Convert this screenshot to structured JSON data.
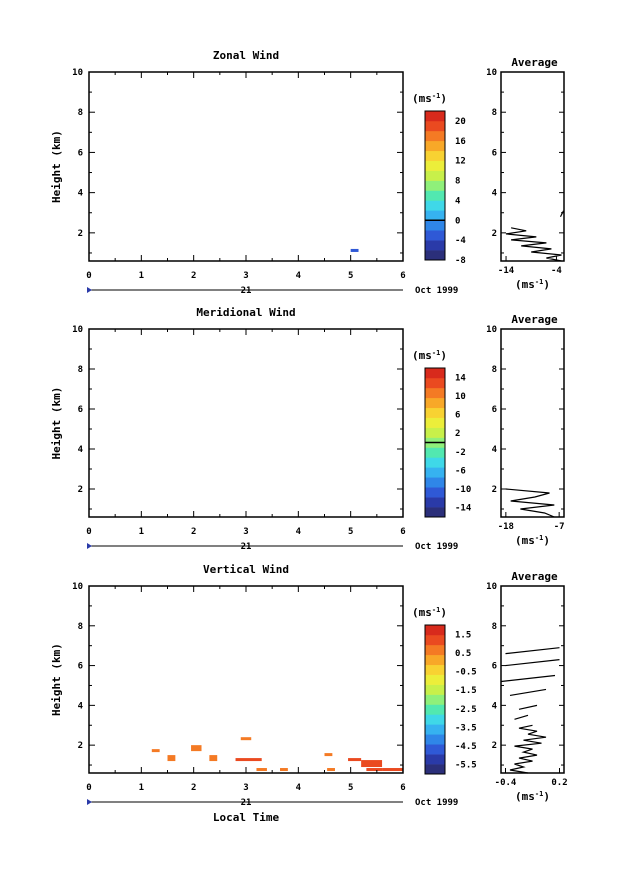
{
  "chart_data": [
    {
      "type": "heatmap",
      "title": "Zonal Wind",
      "ylabel": "Height (km)",
      "xlim": [
        0,
        6
      ],
      "ylim": [
        0.6,
        10
      ],
      "x_ticks": [
        "0",
        "1",
        "2",
        "3",
        "4",
        "5",
        "6"
      ],
      "y_ticks": [
        "2",
        "4",
        "6",
        "8",
        "10"
      ],
      "date_day": "21",
      "date_month": "Oct 1999",
      "colorbar": {
        "unit": "(ms",
        "unit_exp": "-1",
        "unit_close": ")",
        "min": -8,
        "max": 22,
        "labels": [
          "20",
          "16",
          "12",
          "8",
          "4",
          "0",
          "-4",
          "-8"
        ],
        "label_values": [
          20,
          16,
          12,
          8,
          4,
          0,
          -4,
          -8
        ],
        "zero_line": 0
      },
      "cells": [
        {
          "x0": 5.0,
          "x1": 5.15,
          "y0": 1.05,
          "y1": 1.2,
          "value": -3
        }
      ],
      "average": {
        "title": "Average",
        "xlim": [
          -15,
          -2.5
        ],
        "x_ticks": [
          "-14",
          "-4"
        ],
        "x_tick_values": [
          -14,
          -4
        ],
        "xlabel": "(ms",
        "xlabel_exp": "-1",
        "xlabel_close": ")",
        "profile_heights": [
          0.6,
          0.75,
          0.9,
          1.05,
          1.2,
          1.35,
          1.5,
          1.65,
          1.8,
          1.95,
          2.1,
          2.25
        ],
        "profile_values": [
          -3,
          -6,
          -3,
          -9,
          -5,
          -11,
          -6,
          -13,
          -8,
          -14,
          -10,
          -13
        ],
        "segments": [
          {
            "h": [
              2.8,
              3.1
            ],
            "v": [
              -3.2,
              -2.6
            ]
          }
        ]
      }
    },
    {
      "type": "heatmap",
      "title": "Meridional Wind",
      "ylabel": "Height (km)",
      "xlim": [
        0,
        6
      ],
      "ylim": [
        0.6,
        10
      ],
      "x_ticks": [
        "0",
        "1",
        "2",
        "3",
        "4",
        "5",
        "6"
      ],
      "y_ticks": [
        "2",
        "4",
        "6",
        "8",
        "10"
      ],
      "date_day": "21",
      "date_month": "Oct 1999",
      "colorbar": {
        "unit": "(ms",
        "unit_exp": "-1",
        "unit_close": ")",
        "min": -16,
        "max": 16,
        "labels": [
          "14",
          "10",
          "6",
          "2",
          "-2",
          "-6",
          "-10",
          "-14"
        ],
        "label_values": [
          14,
          10,
          6,
          2,
          -2,
          -6,
          -10,
          -14
        ],
        "zero_line": 0
      },
      "cells": [],
      "average": {
        "title": "Average",
        "xlim": [
          -19,
          -6
        ],
        "x_ticks": [
          "-18",
          "-7"
        ],
        "x_tick_values": [
          -18,
          -7
        ],
        "xlabel": "(ms",
        "xlabel_exp": "-1",
        "xlabel_close": ")",
        "profile_heights": [
          0.6,
          0.8,
          1.0,
          1.2,
          1.4,
          1.6,
          1.8,
          2.0
        ],
        "profile_values": [
          -8,
          -10,
          -15,
          -8,
          -17,
          -12,
          -9,
          -18
        ],
        "segments": []
      }
    },
    {
      "type": "heatmap",
      "title": "Vertical Wind",
      "ylabel": "Height (km)",
      "xlabel": "Local Time",
      "xlim": [
        0,
        6
      ],
      "ylim": [
        0.6,
        10
      ],
      "x_ticks": [
        "0",
        "1",
        "2",
        "3",
        "4",
        "5",
        "6"
      ],
      "y_ticks": [
        "2",
        "4",
        "6",
        "8",
        "10"
      ],
      "date_day": "21",
      "date_month": "Oct 1999",
      "colorbar": {
        "unit": "(ms",
        "unit_exp": "-1",
        "unit_close": ")",
        "min": -6,
        "max": 2,
        "labels": [
          "1.5",
          "0.5",
          "-0.5",
          "-1.5",
          "-2.5",
          "-3.5",
          "-4.5",
          "-5.5"
        ],
        "label_values": [
          1.5,
          0.5,
          -0.5,
          -1.5,
          -2.5,
          -3.5,
          -4.5,
          -5.5
        ],
        "zero_line": null
      },
      "cells": [
        {
          "x0": 1.2,
          "x1": 1.35,
          "y0": 1.65,
          "y1": 1.8,
          "value": 0.8
        },
        {
          "x0": 1.5,
          "x1": 1.65,
          "y0": 1.2,
          "y1": 1.5,
          "value": 0.7
        },
        {
          "x0": 1.95,
          "x1": 2.15,
          "y0": 1.7,
          "y1": 2.0,
          "value": 0.9
        },
        {
          "x0": 2.3,
          "x1": 2.45,
          "y0": 1.2,
          "y1": 1.5,
          "value": 0.7
        },
        {
          "x0": 2.9,
          "x1": 3.1,
          "y0": 2.25,
          "y1": 2.4,
          "value": 0.6
        },
        {
          "x0": 2.8,
          "x1": 3.3,
          "y0": 1.2,
          "y1": 1.35,
          "value": 1.0
        },
        {
          "x0": 3.2,
          "x1": 3.4,
          "y0": 0.7,
          "y1": 0.85,
          "value": 0.9
        },
        {
          "x0": 3.65,
          "x1": 3.8,
          "y0": 0.7,
          "y1": 0.85,
          "value": 0.9
        },
        {
          "x0": 4.5,
          "x1": 4.65,
          "y0": 1.45,
          "y1": 1.6,
          "value": 0.8
        },
        {
          "x0": 4.55,
          "x1": 4.7,
          "y0": 0.7,
          "y1": 0.85,
          "value": 0.9
        },
        {
          "x0": 4.95,
          "x1": 5.2,
          "y0": 1.2,
          "y1": 1.35,
          "value": 1.0
        },
        {
          "x0": 5.2,
          "x1": 5.6,
          "y0": 0.9,
          "y1": 1.25,
          "value": 1.1
        },
        {
          "x0": 5.3,
          "x1": 5.6,
          "y0": 0.7,
          "y1": 0.85,
          "value": 1.0
        },
        {
          "x0": 5.6,
          "x1": 6.0,
          "y0": 0.7,
          "y1": 0.85,
          "value": 1.1
        }
      ],
      "average": {
        "title": "Average",
        "xlim": [
          -0.45,
          0.25
        ],
        "x_ticks": [
          "-0.4",
          "0.2"
        ],
        "x_tick_values": [
          -0.4,
          0.2
        ],
        "xlabel": "(ms",
        "xlabel_exp": "-1",
        "xlabel_close": ")",
        "profile_heights": [
          0.6,
          0.75,
          0.9,
          1.05,
          1.2,
          1.35,
          1.5,
          1.65,
          1.8,
          1.95,
          2.1,
          2.25,
          2.4,
          2.55,
          2.7,
          2.85,
          3.0
        ],
        "profile_values": [
          -0.15,
          -0.35,
          -0.2,
          -0.3,
          -0.1,
          -0.25,
          -0.05,
          -0.2,
          -0.1,
          -0.3,
          0.0,
          -0.2,
          0.05,
          -0.15,
          -0.05,
          -0.25,
          -0.1
        ],
        "segments": [
          {
            "h": [
              3.3,
              3.5
            ],
            "v": [
              -0.3,
              -0.15
            ]
          },
          {
            "h": [
              3.8,
              4.0
            ],
            "v": [
              -0.25,
              -0.05
            ]
          },
          {
            "h": [
              4.5,
              4.8
            ],
            "v": [
              -0.35,
              0.05
            ]
          },
          {
            "h": [
              5.2,
              5.5
            ],
            "v": [
              -0.45,
              0.15
            ]
          },
          {
            "h": [
              6.0,
              6.3
            ],
            "v": [
              -0.4,
              0.2
            ]
          },
          {
            "h": [
              6.6,
              6.9
            ],
            "v": [
              -0.4,
              0.2
            ]
          }
        ]
      }
    }
  ]
}
